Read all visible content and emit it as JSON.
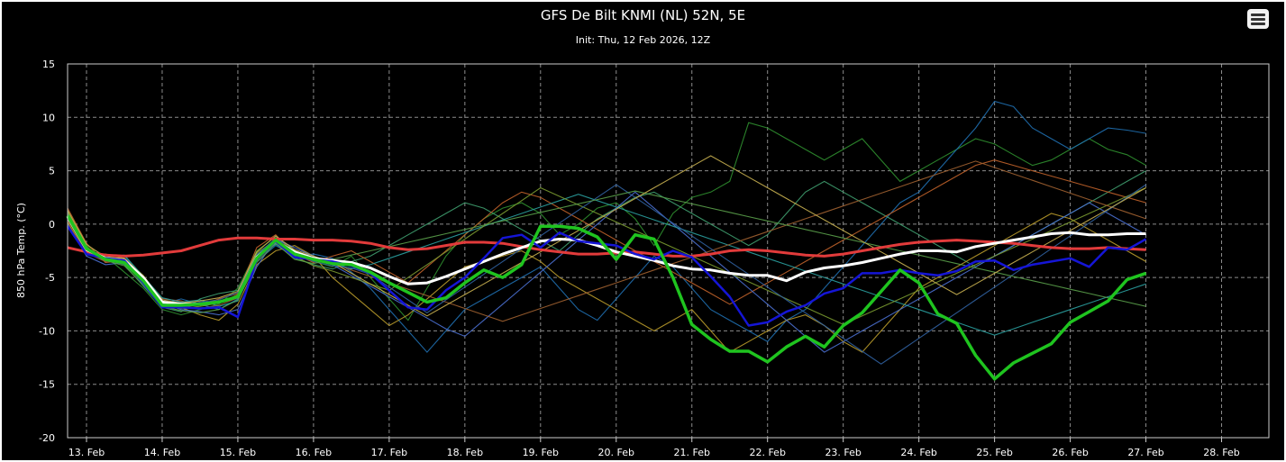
{
  "title": "GFS De Bilt KNMI (NL) 52N, 5E",
  "subtitle": "Init: Thu, 12 Feb 2026, 12Z",
  "menu": {
    "icon": "hamburger-menu-icon"
  },
  "colors": {
    "background": "#000000",
    "grid": "#8c8c8c",
    "control_run": "#1fc41f",
    "operational_run": "#1515d6",
    "ensemble_mean": "#ffffff",
    "climatology": "#e23b3b",
    "members": [
      "#2f8f2f",
      "#1f6fb0",
      "#3f9f6f",
      "#b89a2a",
      "#c0622a",
      "#4a6fd0",
      "#2aa0a0",
      "#7a9a30",
      "#a06030",
      "#3060a0",
      "#5aa04a",
      "#c8b050"
    ]
  },
  "chart_data": {
    "type": "line",
    "title": "GFS De Bilt KNMI (NL) 52N, 5E",
    "subtitle": "Init: Thu, 12 Feb 2026, 12Z",
    "ylabel": "850 hPa Temp. (°C)",
    "xlabel": "",
    "ylim": [
      -20,
      15
    ],
    "yticks": [
      15,
      10,
      5,
      0,
      -5,
      -10,
      -15,
      -20
    ],
    "xlim_days": [
      12.75,
      28.625
    ],
    "xticks": [
      "13. Feb",
      "14. Feb",
      "15. Feb",
      "16. Feb",
      "17. Feb",
      "18. Feb",
      "19. Feb",
      "20. Feb",
      "21. Feb",
      "22. Feb",
      "23. Feb",
      "24. Feb",
      "25. Feb",
      "26. Feb",
      "27. Feb",
      "28. Feb"
    ],
    "grid": true,
    "legend": "none",
    "x_step_hours": 6,
    "x_start": "12. Feb 18Z",
    "series": [
      {
        "role": "control",
        "width": 3.5,
        "values": [
          0.8,
          -2.3,
          -3.3,
          -3.6,
          -5.3,
          -7.6,
          -7.6,
          -7.5,
          -7.3,
          -6.8,
          -3.2,
          -1.5,
          -2.8,
          -3.3,
          -3.7,
          -3.8,
          -4.5,
          -5.5,
          -6.4,
          -7.3,
          -6.9,
          -5.5,
          -4.3,
          -5.0,
          -3.8,
          -0.2,
          -0.2,
          -0.4,
          -1.2,
          -3.3,
          -1.0,
          -1.4,
          -5.0,
          -9.4,
          -10.8,
          -11.9,
          -11.9,
          -12.9,
          -11.5,
          -10.5,
          -11.5,
          -9.5,
          -8.3,
          -6.3,
          -4.3,
          -5.5,
          -8.4,
          -9.3,
          -12.3,
          -14.5,
          -13.0,
          -12.1,
          -11.2,
          -9.2,
          -8.2,
          -7.2,
          -5.2,
          -4.6
        ]
      },
      {
        "role": "operational",
        "width": 2.5,
        "values": [
          -0.2,
          -2.8,
          -3.2,
          -3.4,
          -5.5,
          -7.8,
          -7.8,
          -7.9,
          -7.8,
          -8.7,
          -3.3,
          -1.6,
          -3.1,
          -3.3,
          -3.5,
          -3.9,
          -4.6,
          -6.2,
          -7.8,
          -8.0,
          -6.2,
          -5.0,
          -3.2,
          -1.3,
          -1.0,
          -2.2,
          -0.8,
          -1.6,
          -1.8,
          -2.0,
          -2.8,
          -3.3,
          -2.5,
          -3.1,
          -4.9,
          -6.8,
          -9.5,
          -9.2,
          -8.2,
          -7.6,
          -6.5,
          -6.0,
          -4.6,
          -4.6,
          -4.3,
          -4.6,
          -4.8,
          -4.4,
          -3.5,
          -3.4,
          -4.3,
          -3.8,
          -3.5,
          -3.2,
          -4.0,
          -2.2,
          -2.4,
          -1.4
        ]
      },
      {
        "role": "mean",
        "width": 3,
        "values": [
          0.7,
          -2.4,
          -3.2,
          -3.4,
          -5.0,
          -7.3,
          -7.5,
          -7.5,
          -7.3,
          -6.8,
          -3.1,
          -1.6,
          -2.6,
          -3.2,
          -3.4,
          -3.6,
          -4.1,
          -4.9,
          -5.6,
          -5.5,
          -4.9,
          -4.2,
          -3.5,
          -2.8,
          -2.2,
          -1.6,
          -1.4,
          -1.5,
          -2.0,
          -2.6,
          -3.0,
          -3.4,
          -3.9,
          -4.2,
          -4.3,
          -4.6,
          -4.8,
          -4.8,
          -5.3,
          -4.5,
          -4.1,
          -3.9,
          -3.6,
          -3.2,
          -2.8,
          -2.5,
          -2.5,
          -2.6,
          -2.1,
          -1.8,
          -1.5,
          -1.2,
          -0.9,
          -0.8,
          -1.0,
          -1.0,
          -0.9,
          -0.9
        ]
      },
      {
        "role": "climatology",
        "width": 3,
        "values": [
          -2.2,
          -2.6,
          -2.9,
          -3.0,
          -2.9,
          -2.7,
          -2.5,
          -2.0,
          -1.5,
          -1.3,
          -1.3,
          -1.4,
          -1.4,
          -1.5,
          -1.5,
          -1.6,
          -1.8,
          -2.2,
          -2.4,
          -2.3,
          -2.0,
          -1.7,
          -1.7,
          -1.8,
          -2.1,
          -2.4,
          -2.6,
          -2.8,
          -2.8,
          -2.7,
          -2.6,
          -2.8,
          -3.0,
          -3.0,
          -2.8,
          -2.5,
          -2.4,
          -2.5,
          -2.7,
          -2.9,
          -3.0,
          -2.8,
          -2.5,
          -2.2,
          -1.9,
          -1.7,
          -1.6,
          -1.5,
          -1.6,
          -1.7,
          -1.8,
          -2.0,
          -2.2,
          -2.3,
          -2.3,
          -2.2,
          -2.3,
          -2.4
        ]
      }
    ],
    "ensemble_members": [
      [
        1.2,
        -2.0,
        -3.0,
        -4.5,
        -6.0,
        -8.0,
        -8.5,
        -8.0,
        -7.5,
        -6.0,
        -2.5,
        -1.2,
        -2.5,
        -3.5,
        -4.0,
        -3.0,
        -5.0,
        -7.0,
        -9.0,
        -6.0,
        -3.0,
        -1.0,
        0.5,
        1.5,
        2.0,
        1.0,
        -1.0,
        0.0,
        1.5,
        2.0,
        0.5,
        -2.0,
        1.0,
        2.5,
        3.0,
        4.0,
        9.5,
        9.0,
        8.0,
        7.0,
        6.0,
        7.0,
        8.0,
        6.0,
        4.0,
        5.0,
        6.0,
        7.0,
        8.0,
        7.5,
        6.5,
        5.5,
        6.0,
        7.0,
        8.0,
        7.0,
        6.5,
        5.5
      ],
      [
        0.5,
        -2.5,
        -3.5,
        -3.0,
        -5.0,
        -7.5,
        -7.0,
        -7.5,
        -8.0,
        -7.0,
        -3.5,
        -2.0,
        -3.0,
        -2.8,
        -3.2,
        -4.5,
        -6.0,
        -8.0,
        -10.0,
        -12.0,
        -10.0,
        -8.0,
        -7.0,
        -6.0,
        -5.0,
        -4.0,
        -6.0,
        -8.0,
        -9.0,
        -7.0,
        -5.0,
        -3.0,
        -4.0,
        -6.0,
        -8.0,
        -9.0,
        -10.0,
        -11.0,
        -9.0,
        -8.0,
        -6.0,
        -4.0,
        -2.0,
        0.0,
        2.0,
        3.0,
        5.0,
        7.0,
        9.0,
        11.5,
        11.0,
        9.0,
        8.0,
        7.0,
        8.0,
        9.0,
        8.8,
        8.5
      ],
      [
        1.0,
        -2.2,
        -3.3,
        -3.8,
        -5.8,
        -7.8,
        -8.2,
        -7.0,
        -6.5,
        -6.2,
        -2.8,
        -1.8,
        -3.2,
        -3.8,
        -4.2,
        -3.5,
        -3.0,
        -2.0,
        -1.0,
        0.0,
        1.0,
        2.0,
        1.5,
        0.5,
        -0.5,
        -1.5,
        -2.5,
        -1.0,
        0.5,
        1.5,
        2.5,
        3.0,
        2.0,
        1.0,
        0.0,
        -1.0,
        -2.0,
        -1.0,
        1.0,
        3.0,
        4.0,
        3.0,
        2.0,
        1.0,
        0.0,
        -1.0,
        -2.0,
        -3.0,
        -4.0,
        -3.0,
        -2.0,
        -1.0,
        0.0,
        1.0,
        2.0,
        3.0,
        4.0,
        5.0
      ],
      [
        0.2,
        -2.8,
        -2.8,
        -3.2,
        -4.8,
        -7.2,
        -7.8,
        -8.5,
        -9.0,
        -7.5,
        -3.8,
        -2.5,
        -2.0,
        -3.0,
        -5.0,
        -6.5,
        -8.0,
        -9.5,
        -8.5,
        -7.0,
        -5.5,
        -4.0,
        -3.5,
        -3.0,
        -2.5,
        -3.5,
        -5.0,
        -6.0,
        -7.0,
        -8.0,
        -9.0,
        -10.0,
        -9.0,
        -8.0,
        -10.0,
        -12.0,
        -11.0,
        -10.0,
        -9.0,
        -8.5,
        -9.5,
        -11.0,
        -12.0,
        -10.0,
        -8.0,
        -6.0,
        -5.0,
        -4.0,
        -3.0,
        -2.0,
        -1.0,
        0.0,
        1.0,
        0.5,
        -0.5,
        -1.5,
        -2.5,
        -3.5
      ],
      [
        1.5,
        -1.8,
        -3.6,
        -3.4,
        -5.2,
        -7.0,
        -7.2,
        -7.6,
        -7.0,
        -6.5,
        -2.2,
        -1.0,
        -2.8,
        -3.6,
        -3.0,
        -2.5,
        -3.5,
        -4.5,
        -5.5,
        -4.0,
        -2.5,
        -1.0,
        0.5,
        2.0,
        3.0,
        2.5,
        1.5,
        0.5,
        -0.5,
        -1.5,
        -2.5,
        -3.5,
        -4.5,
        -5.5,
        -6.5,
        -7.5,
        -6.5,
        -5.5,
        -4.5,
        -3.5,
        -2.5,
        -1.5,
        -0.5,
        0.5,
        1.5,
        2.5,
        3.5,
        4.5,
        5.5,
        6.0,
        5.5,
        5.0,
        4.5,
        4.0,
        3.5,
        3.0,
        2.5,
        2.0
      ],
      [
        0.0,
        -3.0,
        -3.8,
        -3.6,
        -5.6,
        -7.4,
        -8.0,
        -8.2,
        -8.5,
        -8.0,
        -4.0,
        -1.4,
        -2.2,
        -3.0,
        -3.8,
        -4.8,
        -5.8,
        -6.8,
        -7.8,
        -8.8,
        -9.8,
        -10.5,
        -9.0,
        -7.5,
        -6.0,
        -4.5,
        -3.0,
        -1.5,
        0.0,
        1.5,
        3.0,
        1.5,
        0.0,
        -1.5,
        -3.0,
        -4.5,
        -6.0,
        -7.5,
        -9.0,
        -10.5,
        -12.0,
        -11.0,
        -10.0,
        -9.0,
        -8.0,
        -7.0,
        -6.0,
        -5.0,
        -4.0,
        -3.0,
        -2.0,
        -1.0,
        0.0,
        1.0,
        2.0,
        1.0,
        0.0,
        -1.0
      ],
      [
        0.8,
        -2.6,
        -3.1,
        -2.9,
        -4.9,
        -6.9,
        -7.3,
        -7.1,
        -7.7,
        -7.2,
        -3.0,
        -1.9,
        -2.6,
        -3.4,
        -3.6,
        -4.2,
        -3.8,
        -3.2,
        -2.6,
        -2.0,
        -1.4,
        -0.8,
        -0.2,
        0.4,
        1.0,
        1.6,
        2.2,
        2.8,
        2.2,
        1.6,
        1.0,
        0.4,
        -0.2,
        -0.8,
        -1.4,
        -2.0,
        -2.6,
        -3.2,
        -3.8,
        -4.4,
        -5.0,
        -5.6,
        -6.2,
        -6.8,
        -7.4,
        -8.0,
        -8.6,
        -9.2,
        -9.8,
        -10.4,
        -9.8,
        -9.2,
        -8.6,
        -8.0,
        -7.4,
        -6.8,
        -6.2,
        -5.6
      ],
      [
        1.1,
        -2.1,
        -3.4,
        -3.7,
        -5.5,
        -7.6,
        -7.9,
        -7.7,
        -7.4,
        -6.6,
        -2.7,
        -1.5,
        -3.0,
        -3.9,
        -4.4,
        -5.0,
        -5.6,
        -6.2,
        -5.0,
        -3.8,
        -2.6,
        -1.4,
        -0.2,
        1.0,
        2.2,
        3.4,
        2.6,
        1.8,
        1.0,
        0.2,
        -0.6,
        -1.4,
        -2.2,
        -3.0,
        -3.8,
        -4.6,
        -5.4,
        -6.2,
        -7.0,
        -7.8,
        -8.6,
        -9.4,
        -8.6,
        -7.8,
        -7.0,
        -6.2,
        -5.4,
        -4.6,
        -3.8,
        -3.0,
        -2.2,
        -1.4,
        -0.6,
        0.2,
        1.0,
        1.8,
        2.6,
        3.4
      ],
      [
        0.4,
        -2.7,
        -3.5,
        -3.3,
        -5.1,
        -7.3,
        -7.6,
        -7.9,
        -7.6,
        -6.9,
        -3.4,
        -1.7,
        -2.9,
        -3.1,
        -3.7,
        -4.3,
        -4.9,
        -5.5,
        -6.1,
        -6.7,
        -7.3,
        -7.9,
        -8.5,
        -9.1,
        -8.5,
        -7.9,
        -7.3,
        -6.7,
        -6.1,
        -5.5,
        -4.9,
        -4.3,
        -3.7,
        -3.1,
        -2.5,
        -1.9,
        -1.3,
        -0.7,
        -0.1,
        0.5,
        1.1,
        1.7,
        2.3,
        2.9,
        3.5,
        4.1,
        4.7,
        5.3,
        5.9,
        5.3,
        4.7,
        4.1,
        3.5,
        2.9,
        2.3,
        1.7,
        1.1,
        0.5
      ],
      [
        0.9,
        -2.3,
        -3.2,
        -3.5,
        -5.3,
        -7.5,
        -7.7,
        -7.3,
        -7.1,
        -6.4,
        -2.9,
        -1.3,
        -2.7,
        -3.5,
        -3.9,
        -4.1,
        -4.7,
        -5.9,
        -7.1,
        -8.3,
        -7.1,
        -5.9,
        -4.7,
        -3.5,
        -2.3,
        -1.1,
        0.1,
        1.3,
        2.5,
        3.7,
        2.5,
        1.3,
        0.1,
        -1.1,
        -2.3,
        -3.5,
        -4.7,
        -5.9,
        -7.1,
        -8.3,
        -9.5,
        -10.7,
        -11.9,
        -13.1,
        -11.9,
        -10.7,
        -9.5,
        -8.3,
        -7.1,
        -5.9,
        -4.7,
        -3.5,
        -2.3,
        -1.1,
        0.1,
        1.3,
        2.5,
        3.7
      ],
      [
        0.6,
        -2.4,
        -3.4,
        -3.9,
        -5.7,
        -7.7,
        -8.1,
        -8.3,
        -8.0,
        -7.1,
        -3.6,
        -1.8,
        -3.3,
        -3.7,
        -3.3,
        -2.9,
        -2.5,
        -2.1,
        -1.7,
        -1.3,
        -0.9,
        -0.5,
        -0.1,
        0.3,
        0.7,
        1.1,
        1.5,
        1.9,
        2.3,
        2.7,
        3.1,
        2.7,
        2.3,
        1.9,
        1.5,
        1.1,
        0.7,
        0.3,
        -0.1,
        -0.5,
        -0.9,
        -1.3,
        -1.7,
        -2.1,
        -2.5,
        -2.9,
        -3.3,
        -3.7,
        -4.1,
        -4.5,
        -4.9,
        -5.3,
        -5.7,
        -6.1,
        -6.5,
        -6.9,
        -7.3,
        -7.7
      ],
      [
        1.3,
        -1.9,
        -3.1,
        -3.2,
        -4.9,
        -7.1,
        -7.4,
        -7.2,
        -6.9,
        -6.3,
        -2.6,
        -1.1,
        -2.4,
        -3.0,
        -3.6,
        -4.6,
        -5.6,
        -6.6,
        -7.6,
        -8.6,
        -7.6,
        -6.6,
        -5.6,
        -4.6,
        -3.6,
        -2.6,
        -1.6,
        -0.6,
        0.4,
        1.4,
        2.4,
        3.4,
        4.4,
        5.4,
        6.4,
        5.4,
        4.4,
        3.4,
        2.4,
        1.4,
        0.4,
        -0.6,
        -1.6,
        -2.6,
        -3.6,
        -4.6,
        -5.6,
        -6.6,
        -5.6,
        -4.6,
        -3.6,
        -2.6,
        -1.6,
        -0.6,
        0.4,
        1.4,
        2.4,
        3.4
      ]
    ]
  },
  "axis": {
    "ylabel": "850 hPa Temp. (°C)"
  }
}
